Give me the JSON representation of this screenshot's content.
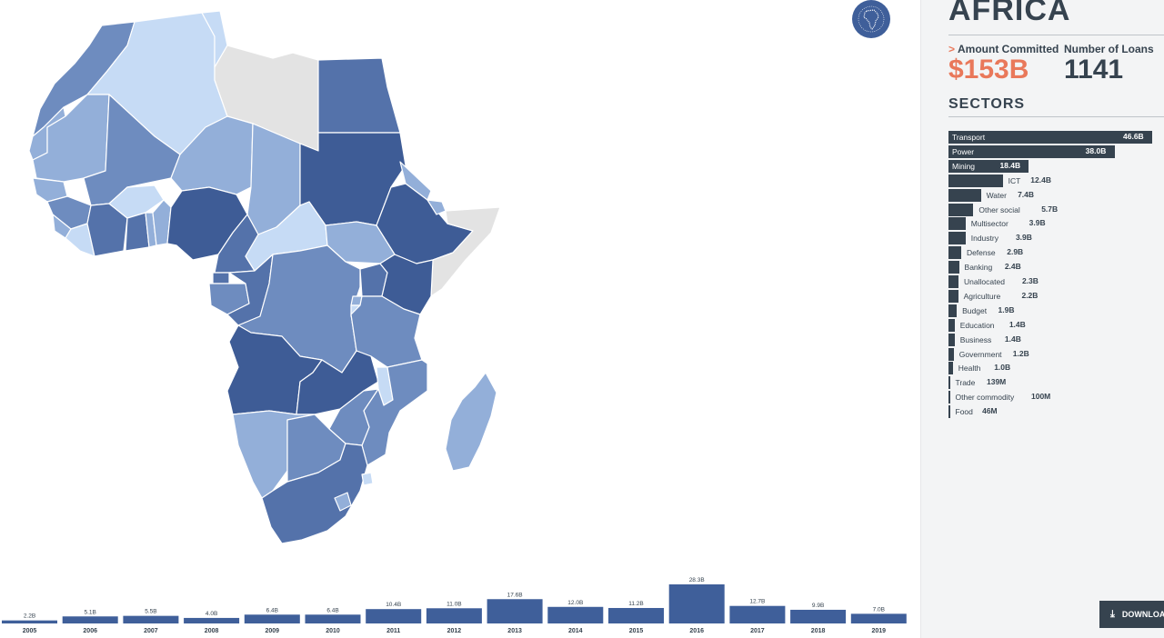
{
  "region": {
    "title": "AFRICA",
    "icon": "africa-globe-icon"
  },
  "stats": {
    "amount_label": "Amount Committed",
    "amount_value": "$153B",
    "loans_label": "Number of Loans",
    "loans_value": "1141",
    "accent_color": "#e9785a"
  },
  "sectors": {
    "title": "SECTORS",
    "items": [
      {
        "name": "Transport",
        "value": 46.6,
        "label": "46.6B"
      },
      {
        "name": "Power",
        "value": 38.0,
        "label": "38.0B"
      },
      {
        "name": "Mining",
        "value": 18.4,
        "label": "18.4B"
      },
      {
        "name": "ICT",
        "value": 12.4,
        "label": "12.4B"
      },
      {
        "name": "Water",
        "value": 7.4,
        "label": "7.4B"
      },
      {
        "name": "Other social",
        "value": 5.7,
        "label": "5.7B"
      },
      {
        "name": "Multisector",
        "value": 3.9,
        "label": "3.9B"
      },
      {
        "name": "Industry",
        "value": 3.9,
        "label": "3.9B"
      },
      {
        "name": "Defense",
        "value": 2.9,
        "label": "2.9B"
      },
      {
        "name": "Banking",
        "value": 2.4,
        "label": "2.4B"
      },
      {
        "name": "Unallocated",
        "value": 2.3,
        "label": "2.3B"
      },
      {
        "name": "Agriculture",
        "value": 2.2,
        "label": "2.2B"
      },
      {
        "name": "Budget",
        "value": 1.9,
        "label": "1.9B"
      },
      {
        "name": "Education",
        "value": 1.4,
        "label": "1.4B"
      },
      {
        "name": "Business",
        "value": 1.4,
        "label": "1.4B"
      },
      {
        "name": "Government",
        "value": 1.2,
        "label": "1.2B"
      },
      {
        "name": "Health",
        "value": 1.0,
        "label": "1.0B"
      },
      {
        "name": "Trade",
        "value": 0.139,
        "label": "139M"
      },
      {
        "name": "Other commodity",
        "value": 0.1,
        "label": "100M"
      },
      {
        "name": "Food",
        "value": 0.046,
        "label": "46M"
      }
    ]
  },
  "download": {
    "label": "DOWNLOAD",
    "icon": "download-icon"
  },
  "chart_data": {
    "type": "bar",
    "categories": [
      "2005",
      "2006",
      "2007",
      "2008",
      "2009",
      "2010",
      "2011",
      "2012",
      "2013",
      "2014",
      "2015",
      "2016",
      "2017",
      "2018",
      "2019"
    ],
    "values": [
      2.2,
      5.1,
      5.5,
      4.0,
      6.4,
      6.4,
      10.4,
      11.0,
      17.6,
      12.0,
      11.2,
      28.3,
      12.7,
      9.9,
      7.0
    ],
    "value_labels": [
      "2.2B",
      "5.1B",
      "5.5B",
      "4.0B",
      "6.4B",
      "6.4B",
      "10.4B",
      "11.0B",
      "17.6B",
      "12.0B",
      "11.2B",
      "28.3B",
      "12.7B",
      "9.9B",
      "7.0B"
    ],
    "bar_color": "#3f5f9a",
    "title": "",
    "xlabel": "",
    "ylabel": ""
  },
  "map": {
    "colors": {
      "darkest": "#3e5c96",
      "dark": "#5472aa",
      "medium": "#6e8cbf",
      "light": "#93afd9",
      "lightest": "#c6dbf5",
      "no_data": "#e3e3e3"
    }
  }
}
